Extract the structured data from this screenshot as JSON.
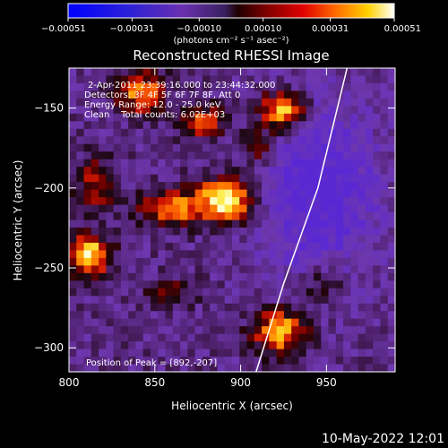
{
  "chart_data": {
    "type": "heatmap",
    "title": "Reconstructed RHESSI Image",
    "xlabel": "Heliocentric X (arcsec)",
    "ylabel": "Heliocentric Y (arcsec)",
    "xlim": [
      800,
      990
    ],
    "ylim": [
      -315,
      -125
    ],
    "x_ticks": [
      800,
      850,
      900,
      950
    ],
    "y_ticks": [
      -150,
      -200,
      -250,
      -300
    ],
    "colorbar": {
      "min": -0.00051,
      "max": 0.00051,
      "ticks": [
        "-0.00051",
        "-0.00031",
        "-0.00010",
        "0.00010",
        "0.00031",
        "0.00051"
      ],
      "unit_label": "(photons cm⁻² s⁻¹ asec⁻²)"
    },
    "info_lines": [
      "2-Apr-2011 23:39:16.000 to 23:44:32.000",
      "Detectors: 3F 4F 5F 6F 7F 8F, Att 0",
      "Energy Range: 12.0 - 25.0 keV",
      "Clean    Total counts: 6.02E+03"
    ],
    "peak_label": "Position of Peak = [892,-207]",
    "peak_position": [
      892,
      -207
    ],
    "limb_arc": [
      [
        962,
        -125
      ],
      [
        945,
        -200
      ],
      [
        925,
        -260
      ],
      [
        909,
        -315
      ]
    ],
    "sources": [
      {
        "x": 892,
        "y": -207,
        "amp": 1.0,
        "sx": 12,
        "sy": 10
      },
      {
        "x": 812,
        "y": -242,
        "amp": 0.92,
        "sx": 9,
        "sy": 9
      },
      {
        "x": 925,
        "y": -152,
        "amp": 0.95,
        "sx": 10,
        "sy": 9
      },
      {
        "x": 923,
        "y": -290,
        "amp": 0.85,
        "sx": 11,
        "sy": 10
      },
      {
        "x": 842,
        "y": -140,
        "amp": 0.75,
        "sx": 10,
        "sy": 9
      },
      {
        "x": 860,
        "y": -213,
        "amp": 0.65,
        "sx": 14,
        "sy": 8
      },
      {
        "x": 878,
        "y": -158,
        "amp": 0.55,
        "sx": 9,
        "sy": 8
      },
      {
        "x": 815,
        "y": -198,
        "amp": 0.45,
        "sx": 8,
        "sy": 12
      },
      {
        "x": 910,
        "y": -175,
        "amp": 0.45,
        "sx": 8,
        "sy": 9
      },
      {
        "x": 948,
        "y": -260,
        "amp": 0.4,
        "sx": 9,
        "sy": 9
      },
      {
        "x": 860,
        "y": -265,
        "amp": 0.35,
        "sx": 10,
        "sy": 6
      },
      {
        "x": 945,
        "y": -200,
        "amp": -0.55,
        "sx": 25,
        "sy": 40
      }
    ]
  },
  "timestamp": "10-May-2022 12:01"
}
